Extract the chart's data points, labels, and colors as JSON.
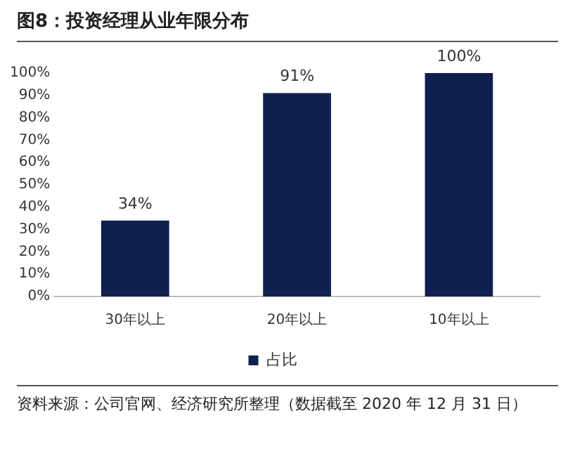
{
  "chart_data": {
    "type": "bar",
    "title": "图8：投资经理从业年限分布",
    "categories": [
      "30年以上",
      "20年以上",
      "10年以上"
    ],
    "series": [
      {
        "name": "占比",
        "color": "#0f1f4f",
        "values": [
          34,
          91,
          100
        ],
        "value_labels": [
          "34%",
          "91%",
          "100%"
        ]
      }
    ],
    "ylim": [
      0,
      100
    ],
    "yticks": [
      {
        "value": 0,
        "label": "0%"
      },
      {
        "value": 10,
        "label": "10%"
      },
      {
        "value": 20,
        "label": "20%"
      },
      {
        "value": 30,
        "label": "30%"
      },
      {
        "value": 40,
        "label": "40%"
      },
      {
        "value": 50,
        "label": "50%"
      },
      {
        "value": 60,
        "label": "60%"
      },
      {
        "value": 70,
        "label": "70%"
      },
      {
        "value": 80,
        "label": "80%"
      },
      {
        "value": 90,
        "label": "90%"
      },
      {
        "value": 100,
        "label": "100%"
      }
    ],
    "legend": "bottom",
    "annotations": [
      "资料来源：公司官网、经济研究所整理（数据截至 2020 年 12 月 31 日）"
    ]
  }
}
